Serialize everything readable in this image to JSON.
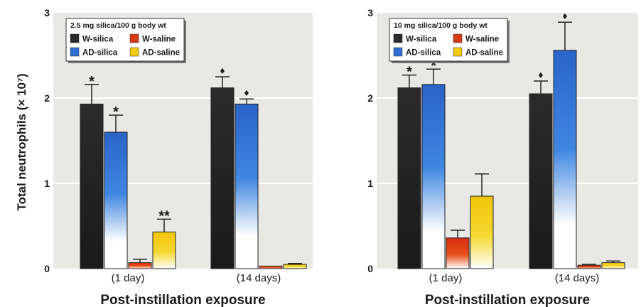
{
  "ylabel": "Total neutrophils (× 10⁷)",
  "colors": {
    "panel_bg": "#e8e8e4",
    "grid": "#ffffff",
    "W-silica": "#2b2b2b",
    "AD-silica": "#2f6fd0",
    "W-saline": "#d83a14",
    "AD-saline": "#f2cc10"
  },
  "chart_data": [
    {
      "type": "bar",
      "title": "2.5 mg silica/100 g body wt",
      "xlabel": "Post-instillation exposure",
      "ylabel": "Total neutrophils (× 10⁷)",
      "categories": [
        "(1 day)",
        "(14 days)"
      ],
      "ylim": [
        0,
        3
      ],
      "yticks": [
        "0",
        "1",
        "2",
        "3"
      ],
      "grid": true,
      "legend_position": "top-left",
      "series": [
        {
          "name": "W-silica",
          "values": [
            1.93,
            2.12
          ],
          "errors": [
            0.23,
            0.13
          ],
          "markers": [
            "*",
            "♦"
          ]
        },
        {
          "name": "AD-silica",
          "values": [
            1.6,
            1.93
          ],
          "errors": [
            0.2,
            0.06
          ],
          "markers": [
            "*",
            "♦"
          ]
        },
        {
          "name": "W-saline",
          "values": [
            0.07,
            0.03
          ],
          "errors": [
            0.04,
            0.0
          ],
          "markers": [
            "",
            ""
          ]
        },
        {
          "name": "AD-saline",
          "values": [
            0.43,
            0.05
          ],
          "errors": [
            0.15,
            0.01
          ],
          "markers": [
            "**",
            ""
          ]
        }
      ]
    },
    {
      "type": "bar",
      "title": "10 mg silica/100 g body wt",
      "xlabel": "Post-instillation exposure",
      "ylabel": "Total neutrophils (× 10⁷)",
      "categories": [
        "(1 day)",
        "(14 days)"
      ],
      "ylim": [
        0,
        3
      ],
      "yticks": [
        "0",
        "1",
        "2",
        "3"
      ],
      "grid": true,
      "legend_position": "top-left",
      "series": [
        {
          "name": "W-silica",
          "values": [
            2.12,
            2.05
          ],
          "errors": [
            0.15,
            0.15
          ],
          "markers": [
            "*",
            "♦"
          ]
        },
        {
          "name": "AD-silica",
          "values": [
            2.16,
            2.56
          ],
          "errors": [
            0.18,
            0.33
          ],
          "markers": [
            "*",
            "♦"
          ]
        },
        {
          "name": "W-saline",
          "values": [
            0.36,
            0.04
          ],
          "errors": [
            0.09,
            0.01
          ],
          "markers": [
            "",
            ""
          ]
        },
        {
          "name": "AD-saline",
          "values": [
            0.85,
            0.07
          ],
          "errors": [
            0.26,
            0.02
          ],
          "markers": [
            "",
            ""
          ]
        }
      ]
    }
  ]
}
